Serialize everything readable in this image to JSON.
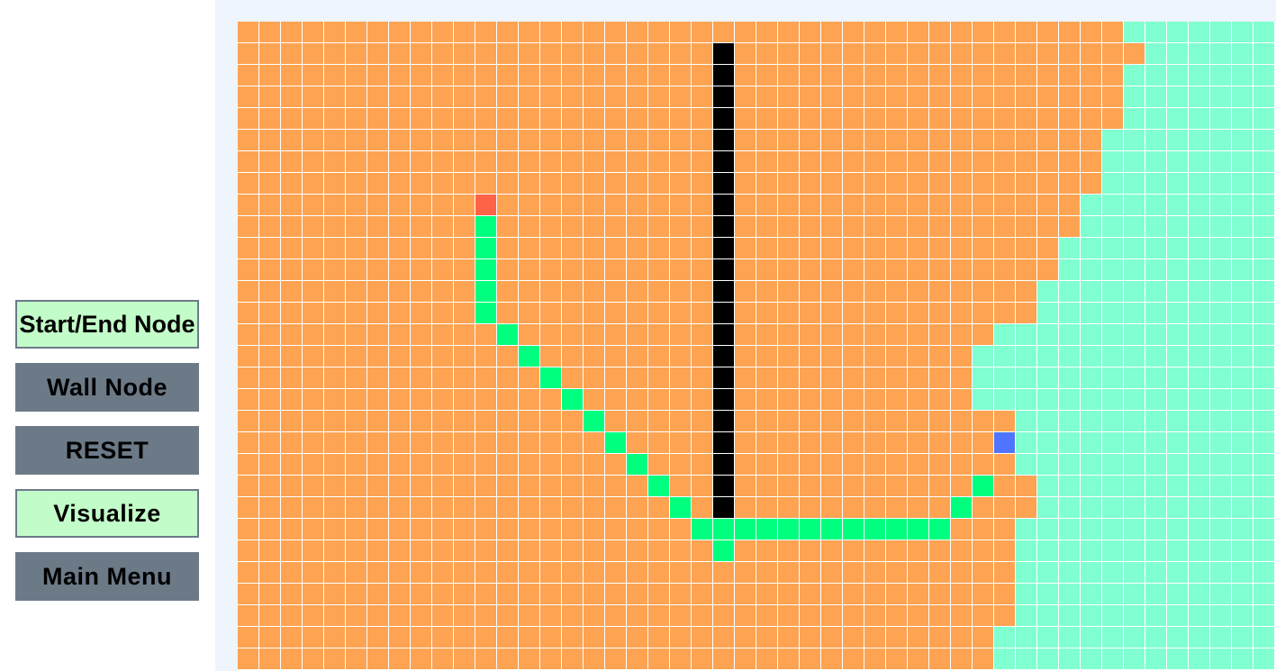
{
  "sidebar": {
    "buttons": [
      {
        "id": "start-end",
        "label": "Start/End Node",
        "style": "light"
      },
      {
        "id": "wall",
        "label": "Wall Node",
        "style": "dark"
      },
      {
        "id": "reset",
        "label": "RESET",
        "style": "dark"
      },
      {
        "id": "visualize",
        "label": "Visualize",
        "style": "light"
      },
      {
        "id": "main-menu",
        "label": "Main Menu",
        "style": "dark"
      }
    ]
  },
  "grid": {
    "columns": 48,
    "rows": 30,
    "colors": {
      "visited": "#fda352",
      "unvisited": "#80ffd0",
      "wall": "#000000",
      "path": "#00ff7f",
      "start": "#ff6347",
      "end": "#4f75ff",
      "gridline": "#ffffff"
    },
    "visited_boundary_by_row": [
      41,
      42,
      41,
      41,
      41,
      40,
      40,
      40,
      39,
      39,
      38,
      38,
      37,
      37,
      35,
      34,
      34,
      34,
      36,
      36,
      36,
      37,
      37,
      36,
      36,
      36,
      36,
      36,
      35,
      35
    ],
    "wall_cells": [
      [
        22,
        1
      ],
      [
        22,
        2
      ],
      [
        22,
        3
      ],
      [
        22,
        4
      ],
      [
        22,
        5
      ],
      [
        22,
        6
      ],
      [
        22,
        7
      ],
      [
        22,
        8
      ],
      [
        22,
        9
      ],
      [
        22,
        10
      ],
      [
        22,
        11
      ],
      [
        22,
        12
      ],
      [
        22,
        13
      ],
      [
        22,
        14
      ],
      [
        22,
        15
      ],
      [
        22,
        16
      ],
      [
        22,
        17
      ],
      [
        22,
        18
      ],
      [
        22,
        19
      ],
      [
        22,
        20
      ],
      [
        22,
        21
      ],
      [
        22,
        22
      ]
    ],
    "path_cells": [
      [
        11,
        9
      ],
      [
        11,
        10
      ],
      [
        11,
        11
      ],
      [
        11,
        12
      ],
      [
        11,
        13
      ],
      [
        12,
        14
      ],
      [
        13,
        15
      ],
      [
        14,
        16
      ],
      [
        15,
        17
      ],
      [
        16,
        18
      ],
      [
        17,
        19
      ],
      [
        18,
        20
      ],
      [
        19,
        21
      ],
      [
        20,
        22
      ],
      [
        21,
        23
      ],
      [
        22,
        23
      ],
      [
        22,
        24
      ],
      [
        23,
        23
      ],
      [
        24,
        23
      ],
      [
        25,
        23
      ],
      [
        26,
        23
      ],
      [
        27,
        23
      ],
      [
        28,
        23
      ],
      [
        29,
        23
      ],
      [
        30,
        23
      ],
      [
        31,
        23
      ],
      [
        32,
        23
      ],
      [
        33,
        22
      ],
      [
        34,
        21
      ]
    ],
    "start_cell": [
      11,
      8
    ],
    "end_cell": [
      35,
      19
    ],
    "extra_unvisited_cells": [
      [
        34,
        16
      ]
    ]
  }
}
